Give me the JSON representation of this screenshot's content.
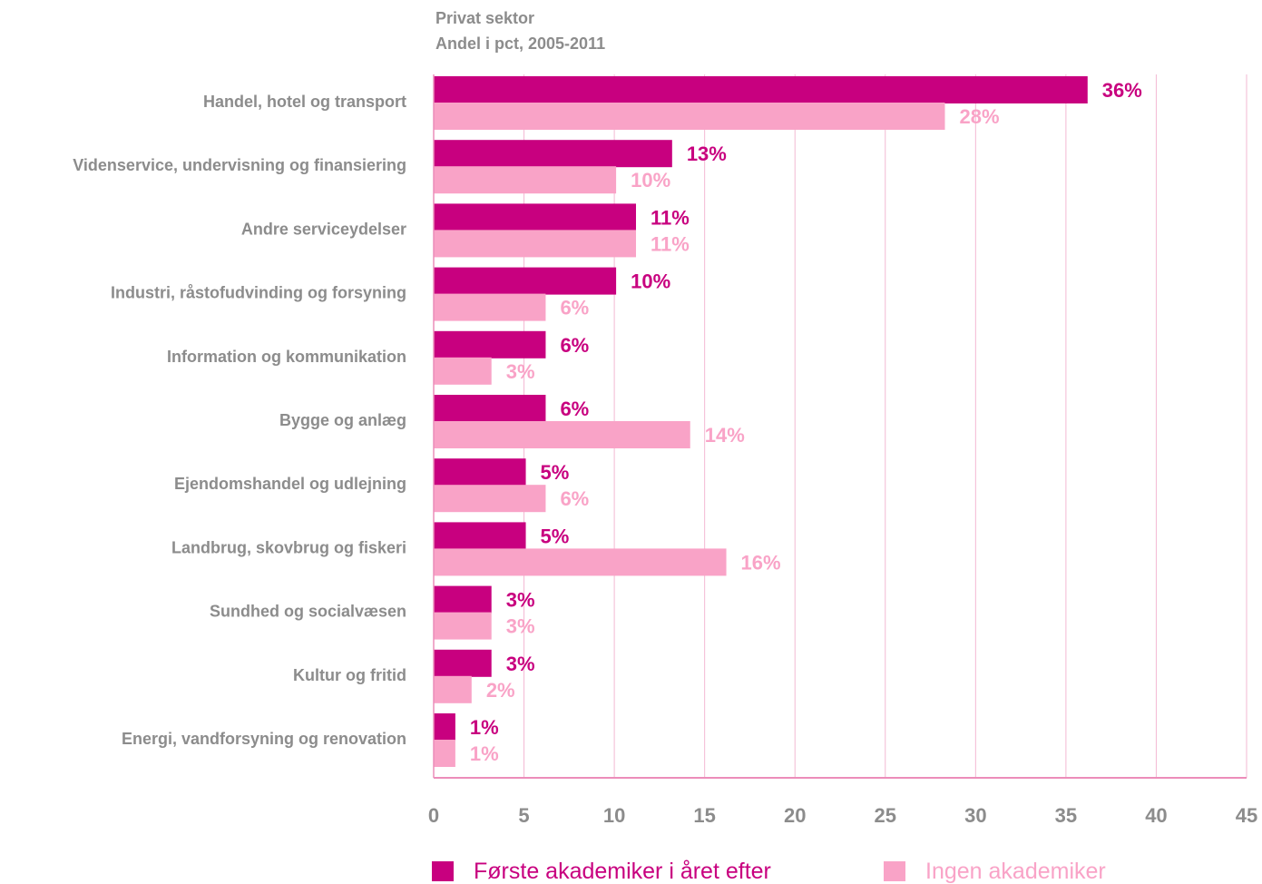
{
  "chart_data": {
    "type": "bar",
    "orientation": "horizontal",
    "title_lines": [
      "Privat sektor",
      "Andel i pct, 2005-2011"
    ],
    "categories": [
      "Handel, hotel og transport",
      "Videnservice, undervisning og finansiering",
      "Andre serviceydelser",
      "Industri, råstofudvinding og forsyning",
      "Information og kommunikation",
      "Bygge og anlæg",
      "Ejendomshandel og udlejning",
      "Landbrug, skovbrug og fiskeri",
      "Sundhed og socialvæsen",
      "Kultur og fritid",
      "Energi, vandforsyning og renovation"
    ],
    "series": [
      {
        "name": "Første akademiker i året efter",
        "color": "#c8007f",
        "values": [
          36.2,
          13.2,
          11.2,
          10.1,
          6.2,
          6.2,
          5.1,
          5.1,
          3.2,
          3.2,
          1.2
        ],
        "labels": [
          "36%",
          "13%",
          "11%",
          "10%",
          "6%",
          "6%",
          "5%",
          "5%",
          "3%",
          "3%",
          "1%"
        ]
      },
      {
        "name": "Ingen akademiker",
        "color": "#f9a3c7",
        "values": [
          28.3,
          10.1,
          11.2,
          6.2,
          3.2,
          14.2,
          6.2,
          16.2,
          3.2,
          2.1,
          1.2
        ],
        "labels": [
          "28%",
          "10%",
          "11%",
          "6%",
          "3%",
          "14%",
          "6%",
          "16%",
          "3%",
          "2%",
          "1%"
        ]
      }
    ],
    "xlim": [
      0,
      45
    ],
    "x_ticks": [
      "0",
      "5",
      "10",
      "15",
      "20",
      "25",
      "30",
      "35",
      "40",
      "45"
    ],
    "grid": true,
    "legend_position": "bottom"
  }
}
